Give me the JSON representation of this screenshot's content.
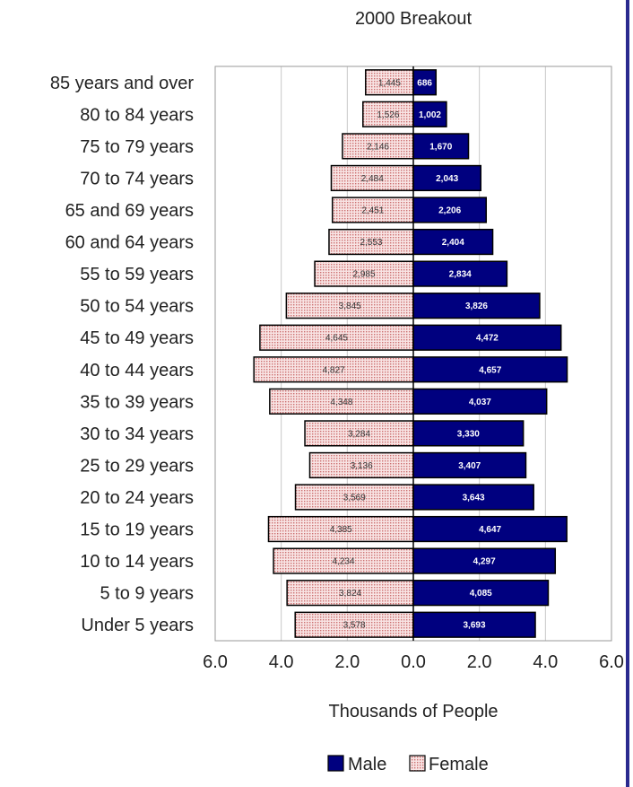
{
  "chart_data": {
    "type": "bar",
    "orientation": "horizontal",
    "layout": "population-pyramid",
    "title": "2000 Breakout",
    "xlabel": "Thousands of People",
    "ylabel": "",
    "xlim": [
      -6.0,
      6.0
    ],
    "x_ticks": [
      "6.0",
      "4.0",
      "2.0",
      "0.0",
      "2.0",
      "4.0",
      "6.0"
    ],
    "grid": true,
    "legend_position": "bottom",
    "categories": [
      "85 years and over",
      "80 to 84 years",
      "75 to 79 years",
      "70 to 74 years",
      "65 and 69 years",
      "60 and 64 years",
      "55 to 59 years",
      "50 to 54 years",
      "45 to 49 years",
      "40 to 44 years",
      "35 to 39 years",
      "30 to 34 years",
      "25 to 29 years",
      "20 to 24 years",
      "15 to 19 years",
      "10 to 14 years",
      "5 to 9 years",
      "Under 5 years"
    ],
    "series": [
      {
        "name": "Male",
        "color": "#00007f",
        "values": [
          0.686,
          1.002,
          1.67,
          2.043,
          2.206,
          2.404,
          2.834,
          3.826,
          4.472,
          4.657,
          4.037,
          3.33,
          3.407,
          3.643,
          4.647,
          4.297,
          4.085,
          3.693
        ],
        "labels": [
          "686",
          "1,002",
          "1,670",
          "2,043",
          "2,206",
          "2,404",
          "2,834",
          "3,826",
          "4,472",
          "4,657",
          "4,037",
          "3,330",
          "3,407",
          "3,643",
          "4,647",
          "4,297",
          "4,085",
          "3,693"
        ]
      },
      {
        "name": "Female",
        "color": "#f2c8c8",
        "values": [
          1.445,
          1.526,
          2.146,
          2.484,
          2.451,
          2.553,
          2.985,
          3.845,
          4.645,
          4.827,
          4.348,
          3.284,
          3.136,
          3.569,
          4.385,
          4.234,
          3.824,
          3.578
        ],
        "labels": [
          "1,445",
          "1,526",
          "2,146",
          "2,484",
          "2,451",
          "2,553",
          "2,985",
          "3,845",
          "4,645",
          "4,827",
          "4,348",
          "3,284",
          "3,136",
          "3,569",
          "4,385",
          "4,234",
          "3,824",
          "3,578"
        ]
      }
    ]
  }
}
